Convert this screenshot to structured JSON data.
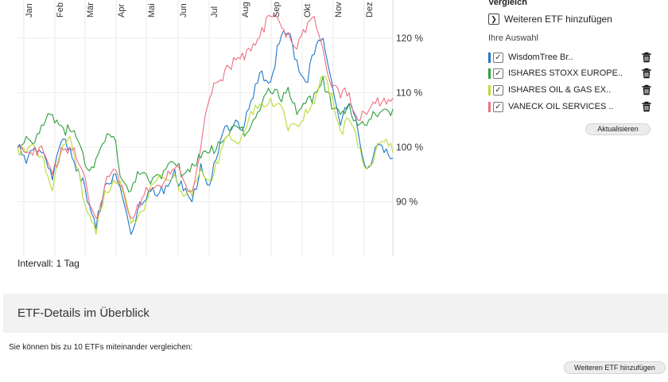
{
  "chart_data": {
    "type": "line",
    "months": [
      "Jan",
      "Feb",
      "Mär",
      "Apr",
      "Mai",
      "Jun",
      "Jul",
      "Aug",
      "Sep",
      "Okt",
      "Nov",
      "Dez"
    ],
    "y_ticks": [
      "90 %",
      "100 %",
      "110 %",
      "120 %"
    ],
    "y_tick_values": [
      90,
      100,
      110,
      120
    ],
    "ylim": [
      80,
      127
    ],
    "grid": true,
    "series": [
      {
        "name": "WisdomTree Br..",
        "color": "#1f77c9",
        "values": [
          100,
          97,
          100,
          99,
          94,
          101,
          100,
          96,
          90,
          85,
          93,
          95,
          91,
          84,
          90,
          92,
          91,
          93,
          96,
          92,
          90,
          97,
          93,
          99,
          104,
          105,
          104,
          109,
          114,
          112,
          119,
          121,
          116,
          112,
          117,
          120,
          112,
          104,
          108,
          103,
          96,
          100,
          99,
          98
        ]
      },
      {
        "name": "ISHARES STOXX EUROPE..",
        "color": "#2e9e3e",
        "values": [
          100,
          102,
          101,
          104,
          106,
          104,
          103,
          101,
          96,
          98,
          101,
          102,
          94,
          92,
          95,
          94,
          95,
          96,
          97,
          95,
          97,
          98,
          99,
          101,
          102,
          104,
          102,
          105,
          108,
          110,
          109,
          111,
          106,
          108,
          110,
          113,
          107,
          106,
          108,
          104,
          104,
          106,
          107,
          107
        ]
      },
      {
        "name": "ISHARES OIL & GAS EX..",
        "color": "#b8dc34",
        "values": [
          100,
          99,
          100,
          98,
          92,
          99,
          102,
          96,
          88,
          84,
          92,
          94,
          92,
          86,
          88,
          91,
          94,
          94,
          95,
          91,
          91,
          96,
          94,
          97,
          102,
          101,
          103,
          106,
          108,
          109,
          108,
          103,
          104,
          107,
          108,
          113,
          110,
          103,
          105,
          100,
          96,
          99,
          101,
          99
        ]
      },
      {
        "name": "VANECK OIL SERVICES ..",
        "color": "#ef6f80",
        "values": [
          100,
          99,
          100,
          99,
          95,
          100,
          100,
          97,
          92,
          87,
          93,
          96,
          93,
          87,
          89,
          92,
          93,
          94,
          96,
          94,
          92,
          100,
          109,
          112,
          115,
          116,
          116,
          119,
          122,
          124,
          123,
          121,
          118,
          121,
          124,
          118,
          111,
          109,
          110,
          105,
          106,
          108,
          109,
          109
        ]
      }
    ]
  },
  "chart_footer": {
    "interval": "Intervall: 1 Tag"
  },
  "sidebar": {
    "title": "Vergleich",
    "add_label": "Weiteren ETF hinzufügen",
    "selection_title": "Ihre Auswahl",
    "update_button": "Aktualisieren",
    "icons": {
      "expand": "chevron-right-icon",
      "checkbox": "checkbox-checked-icon",
      "delete": "trash-icon"
    }
  },
  "details": {
    "title": "ETF-Details im Überblick",
    "compare_text": "Sie können bis zu 10 ETFs miteinander vergleichen:",
    "add_button": "Weiteren ETF hinzufügen"
  }
}
